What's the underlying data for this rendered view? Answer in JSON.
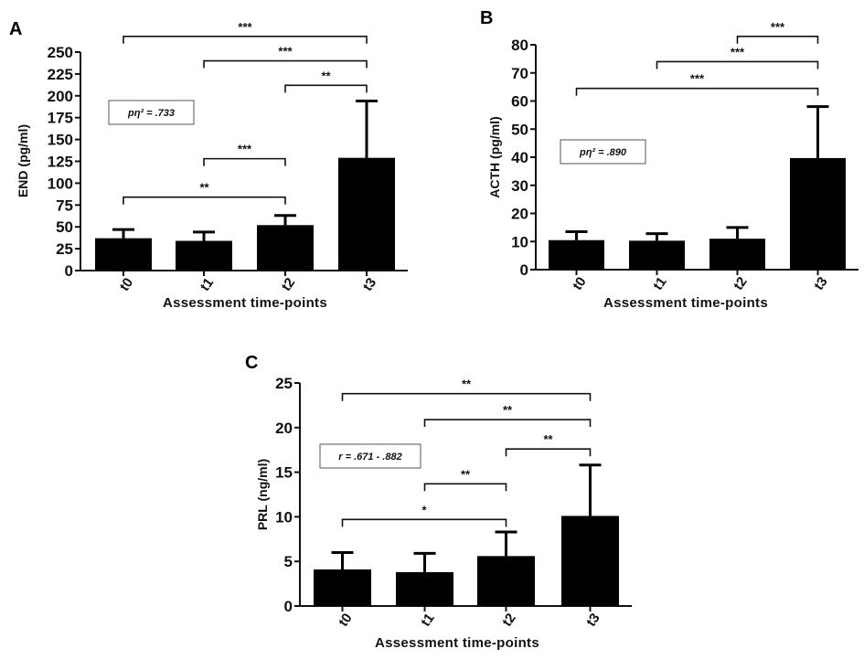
{
  "chart_data": [
    {
      "type": "bar",
      "panel": "A",
      "categories": [
        "t0",
        "t1",
        "t2",
        "t3"
      ],
      "values": [
        37,
        34,
        52,
        129
      ],
      "error_upper": [
        10,
        10,
        11,
        65
      ],
      "ylabel": "END (pg/ml)",
      "xlabel": "Assessment time-points",
      "ylim": [
        0,
        250
      ],
      "yticks": [
        0,
        25,
        50,
        75,
        100,
        125,
        150,
        175,
        200,
        225,
        250
      ],
      "annotation": "pη² = .733",
      "comparisons": [
        {
          "from": 0,
          "to": 3,
          "label": "***",
          "y": 268
        },
        {
          "from": 1,
          "to": 3,
          "label": "***",
          "y": 240
        },
        {
          "from": 2,
          "to": 3,
          "label": "**",
          "y": 212
        },
        {
          "from": 1,
          "to": 2,
          "label": "***",
          "y": 128
        },
        {
          "from": 0,
          "to": 2,
          "label": "**",
          "y": 84
        }
      ]
    },
    {
      "type": "bar",
      "panel": "B",
      "categories": [
        "t0",
        "t1",
        "t2",
        "t3"
      ],
      "values": [
        10.5,
        10.3,
        11,
        39.7
      ],
      "error_upper": [
        3,
        2.5,
        4,
        18.3
      ],
      "ylabel": "ACTH (pg/ml)",
      "xlabel": "Assessment time-points",
      "ylim": [
        0,
        80
      ],
      "yticks": [
        0,
        10,
        20,
        30,
        40,
        50,
        60,
        70,
        80
      ],
      "annotation": "pη² = .890",
      "comparisons": [
        {
          "from": 2,
          "to": 3,
          "label": "***",
          "y": 83
        },
        {
          "from": 1,
          "to": 3,
          "label": "***",
          "y": 74
        },
        {
          "from": 0,
          "to": 3,
          "label": "***",
          "y": 64.5
        }
      ]
    },
    {
      "type": "bar",
      "panel": "C",
      "categories": [
        "t0",
        "t1",
        "t2",
        "t3"
      ],
      "values": [
        4.1,
        3.8,
        5.6,
        10.1
      ],
      "error_upper": [
        1.9,
        2.1,
        2.7,
        5.7
      ],
      "ylabel": "PRL (ng/ml)",
      "xlabel": "Assessment time-points",
      "ylim": [
        0,
        25
      ],
      "yticks": [
        0,
        5,
        10,
        15,
        20,
        25
      ],
      "annotation": "r = .671 - .882",
      "comparisons": [
        {
          "from": 0,
          "to": 3,
          "label": "**",
          "y": 23.8
        },
        {
          "from": 1,
          "to": 3,
          "label": "**",
          "y": 20.9
        },
        {
          "from": 2,
          "to": 3,
          "label": "**",
          "y": 17.6
        },
        {
          "from": 1,
          "to": 2,
          "label": "**",
          "y": 13.7
        },
        {
          "from": 0,
          "to": 2,
          "label": "*",
          "y": 9.7
        }
      ]
    }
  ]
}
